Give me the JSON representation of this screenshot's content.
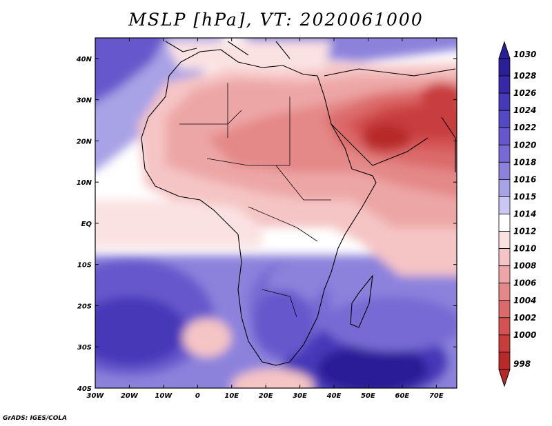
{
  "title": "MSLP [hPa], VT: 2020061000",
  "credit": "GrADS: IGES/COLA",
  "map": {
    "lon_range": [
      -30,
      76
    ],
    "lat_range": [
      -40,
      45
    ],
    "lon_ticks": [
      {
        "value": -30,
        "label": "30W"
      },
      {
        "value": -20,
        "label": "20W"
      },
      {
        "value": -10,
        "label": "10W"
      },
      {
        "value": 0,
        "label": "0"
      },
      {
        "value": 10,
        "label": "10E"
      },
      {
        "value": 20,
        "label": "20E"
      },
      {
        "value": 30,
        "label": "30E"
      },
      {
        "value": 40,
        "label": "40E"
      },
      {
        "value": 50,
        "label": "50E"
      },
      {
        "value": 60,
        "label": "60E"
      },
      {
        "value": 70,
        "label": "70E"
      }
    ],
    "lat_ticks": [
      {
        "value": 40,
        "label": "40N"
      },
      {
        "value": 30,
        "label": "30N"
      },
      {
        "value": 20,
        "label": "20N"
      },
      {
        "value": 10,
        "label": "10N"
      },
      {
        "value": 0,
        "label": "EQ"
      },
      {
        "value": -10,
        "label": "10S"
      },
      {
        "value": -20,
        "label": "20S"
      },
      {
        "value": -30,
        "label": "30S"
      },
      {
        "value": -40,
        "label": "40S"
      }
    ]
  },
  "colorbar": {
    "levels": [
      {
        "label": "1030",
        "color": "#2a1f96"
      },
      {
        "label": "1028",
        "color": "#3828a8"
      },
      {
        "label": "1026",
        "color": "#4638b8"
      },
      {
        "label": "1024",
        "color": "#5548c4"
      },
      {
        "label": "1022",
        "color": "#6658cc"
      },
      {
        "label": "1020",
        "color": "#776ad4"
      },
      {
        "label": "1018",
        "color": "#8c82dc"
      },
      {
        "label": "1016",
        "color": "#a8a2e6"
      },
      {
        "label": "1015",
        "color": "#cac8f2"
      },
      {
        "label": "1014",
        "color": "#ffffff"
      },
      {
        "label": "1012",
        "color": "#fbe2e2"
      },
      {
        "label": "1010",
        "color": "#f5c4c4"
      },
      {
        "label": "1008",
        "color": "#eda6a6"
      },
      {
        "label": "1006",
        "color": "#e48888"
      },
      {
        "label": "1004",
        "color": "#dc6a6a"
      },
      {
        "label": "1002",
        "color": "#d45252"
      },
      {
        "label": "1000",
        "color": "#c83c3c"
      },
      {
        "label": "998",
        "color": "#b82a2a"
      }
    ]
  }
}
